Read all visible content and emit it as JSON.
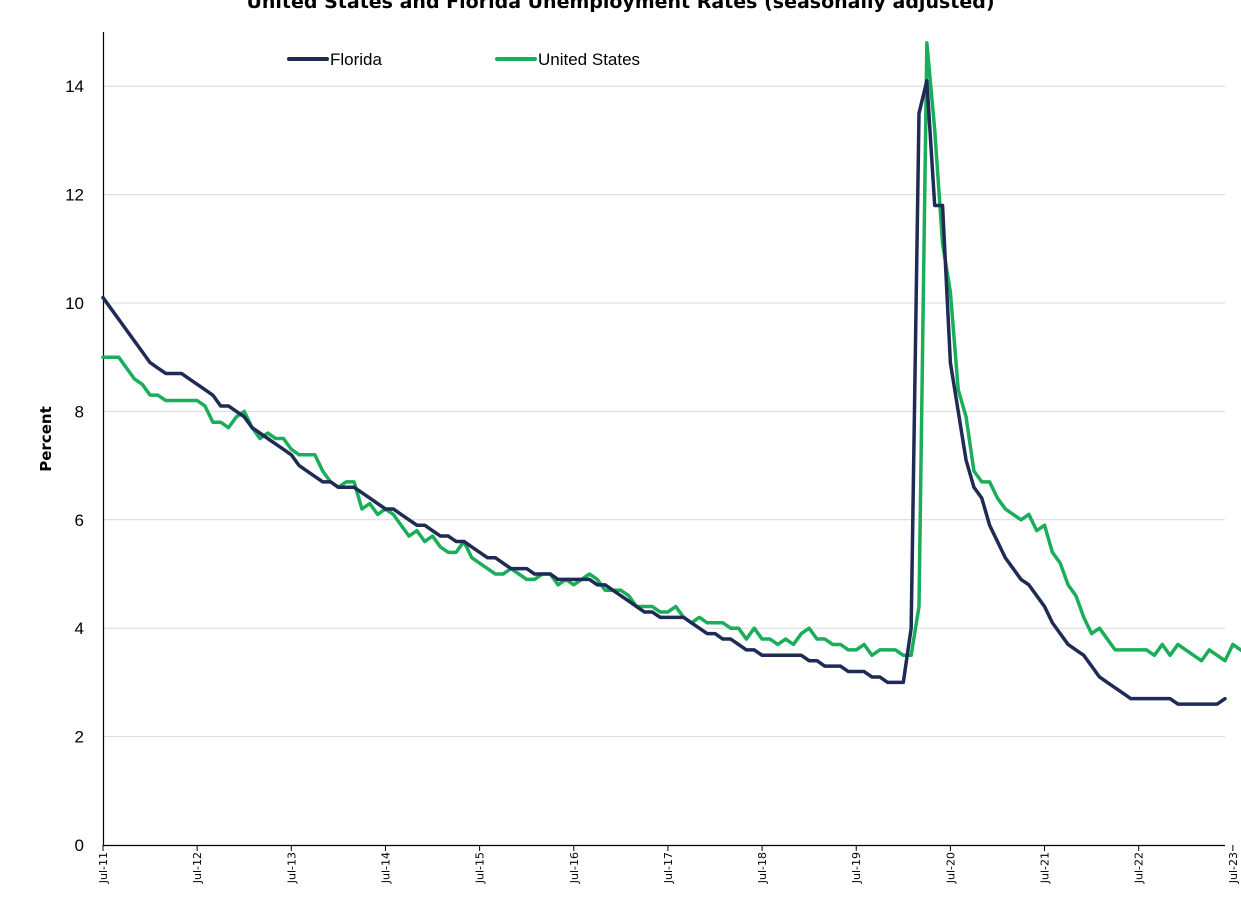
{
  "chart_data": {
    "type": "line",
    "title": "United States and Florida Unemployment Rates (seasonally adjusted)",
    "xlabel": "",
    "ylabel": "Percent",
    "ylim": [
      0,
      15
    ],
    "yticks": [
      0,
      2,
      4,
      6,
      8,
      10,
      12,
      14
    ],
    "x_tick_labels": [
      "Jul-11",
      "Jul-12",
      "Jul-13",
      "Jul-14",
      "Jul-15",
      "Jul-16",
      "Jul-17",
      "Jul-18",
      "Jul-19",
      "Jul-20",
      "Jul-21",
      "Jul-22",
      "Jul-23"
    ],
    "x_start": "Jul-11",
    "x_end": "Jul-23",
    "frequency": "monthly",
    "grid": "horizontal",
    "legend_position": "top-left",
    "series": [
      {
        "name": "Florida",
        "color": "#1f2a55",
        "values": [
          10.1,
          9.9,
          9.7,
          9.5,
          9.3,
          9.1,
          8.9,
          8.8,
          8.7,
          8.7,
          8.7,
          8.6,
          8.5,
          8.4,
          8.3,
          8.1,
          8.1,
          8.0,
          7.9,
          7.7,
          7.6,
          7.5,
          7.4,
          7.3,
          7.2,
          7.0,
          6.9,
          6.8,
          6.7,
          6.7,
          6.6,
          6.6,
          6.6,
          6.5,
          6.4,
          6.3,
          6.2,
          6.2,
          6.1,
          6.0,
          5.9,
          5.9,
          5.8,
          5.7,
          5.7,
          5.6,
          5.6,
          5.5,
          5.4,
          5.3,
          5.3,
          5.2,
          5.1,
          5.1,
          5.1,
          5.0,
          5.0,
          5.0,
          4.9,
          4.9,
          4.9,
          4.9,
          4.9,
          4.8,
          4.8,
          4.7,
          4.6,
          4.5,
          4.4,
          4.3,
          4.3,
          4.2,
          4.2,
          4.2,
          4.2,
          4.1,
          4.0,
          3.9,
          3.9,
          3.8,
          3.8,
          3.7,
          3.6,
          3.6,
          3.5,
          3.5,
          3.5,
          3.5,
          3.5,
          3.5,
          3.4,
          3.4,
          3.3,
          3.3,
          3.3,
          3.2,
          3.2,
          3.2,
          3.1,
          3.1,
          3.0,
          3.0,
          3.0,
          4.0,
          13.5,
          14.1,
          11.8,
          11.8,
          8.9,
          8.0,
          7.1,
          6.6,
          6.4,
          5.9,
          5.6,
          5.3,
          5.1,
          4.9,
          4.8,
          4.6,
          4.4,
          4.1,
          3.9,
          3.7,
          3.6,
          3.5,
          3.3,
          3.1,
          3.0,
          2.9,
          2.8,
          2.7,
          2.7,
          2.7,
          2.7,
          2.7,
          2.7,
          2.6,
          2.6,
          2.6,
          2.6,
          2.6,
          2.6,
          2.7
        ]
      },
      {
        "name": "United States",
        "color": "#1aad5a",
        "values": [
          9.0,
          9.0,
          9.0,
          8.8,
          8.6,
          8.5,
          8.3,
          8.3,
          8.2,
          8.2,
          8.2,
          8.2,
          8.2,
          8.1,
          7.8,
          7.8,
          7.7,
          7.9,
          8.0,
          7.7,
          7.5,
          7.6,
          7.5,
          7.5,
          7.3,
          7.2,
          7.2,
          7.2,
          6.9,
          6.7,
          6.6,
          6.7,
          6.7,
          6.2,
          6.3,
          6.1,
          6.2,
          6.1,
          5.9,
          5.7,
          5.8,
          5.6,
          5.7,
          5.5,
          5.4,
          5.4,
          5.6,
          5.3,
          5.2,
          5.1,
          5.0,
          5.0,
          5.1,
          5.0,
          4.9,
          4.9,
          5.0,
          5.0,
          4.8,
          4.9,
          4.8,
          4.9,
          5.0,
          4.9,
          4.7,
          4.7,
          4.7,
          4.6,
          4.4,
          4.4,
          4.4,
          4.3,
          4.3,
          4.4,
          4.2,
          4.1,
          4.2,
          4.1,
          4.1,
          4.1,
          4.0,
          4.0,
          3.8,
          4.0,
          3.8,
          3.8,
          3.7,
          3.8,
          3.7,
          3.9,
          4.0,
          3.8,
          3.8,
          3.7,
          3.7,
          3.6,
          3.6,
          3.7,
          3.5,
          3.6,
          3.6,
          3.6,
          3.5,
          3.5,
          4.4,
          14.8,
          13.2,
          11.1,
          10.2,
          8.4,
          7.9,
          6.9,
          6.7,
          6.7,
          6.4,
          6.2,
          6.1,
          6.0,
          6.1,
          5.8,
          5.9,
          5.4,
          5.2,
          4.8,
          4.6,
          4.2,
          3.9,
          4.0,
          3.8,
          3.6,
          3.6,
          3.6,
          3.6,
          3.6,
          3.5,
          3.7,
          3.5,
          3.7,
          3.6,
          3.5,
          3.4,
          3.6,
          3.5,
          3.4,
          3.7,
          3.6,
          3.5
        ]
      }
    ]
  }
}
